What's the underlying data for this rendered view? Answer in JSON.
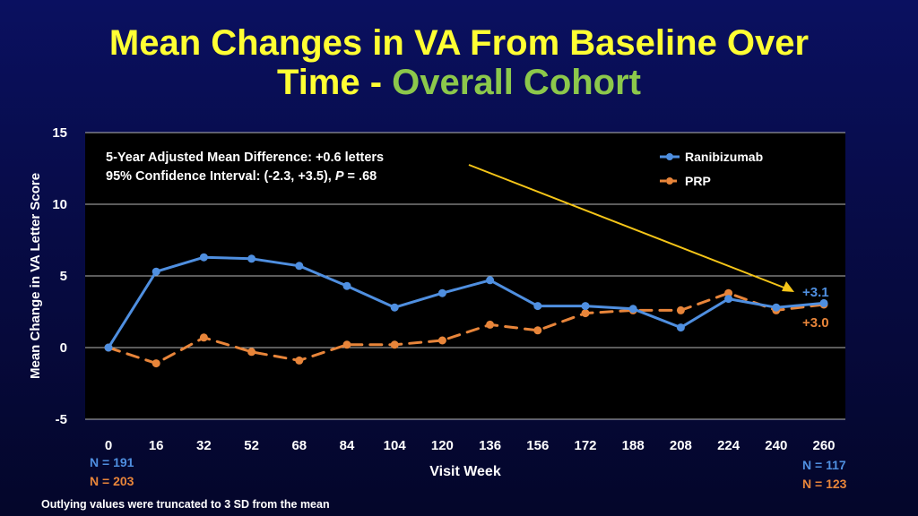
{
  "title": {
    "line1": "Mean Changes in VA From Baseline Over",
    "line2_main": "Time - ",
    "line2_accent": "Overall Cohort"
  },
  "annotation": {
    "line1": "5-Year Adjusted Mean Difference: +0.6 letters",
    "line2_prefix": "95% Confidence Interval: (-2.3, +3.5), ",
    "line2_p": "P",
    "line2_suffix": " = .68"
  },
  "end_labels": {
    "ranibizumab": "+3.1",
    "prp": "+3.0"
  },
  "n_counts": {
    "start_ranibizumab": "N = 191",
    "start_prp": "N = 203",
    "end_ranibizumab": "N = 117",
    "end_prp": "N = 123"
  },
  "footnote": "Outlying values were truncated to 3 SD from the mean",
  "colors": {
    "ranibizumab": "#4f8fe0",
    "prp": "#e8853a",
    "title": "#ffff33",
    "accent": "#8cc84b",
    "arrow": "#f5c518"
  },
  "chart_data": {
    "type": "line",
    "title": "Mean Changes in VA From Baseline Over Time - Overall Cohort",
    "xlabel": "Visit Week",
    "ylabel": "Mean Change in VA Letter Score",
    "categories": [
      "0",
      "16",
      "32",
      "52",
      "68",
      "84",
      "104",
      "120",
      "136",
      "156",
      "172",
      "188",
      "208",
      "224",
      "240",
      "260"
    ],
    "ylim": [
      -5,
      15
    ],
    "yticks": [
      "-5",
      "0",
      "5",
      "10",
      "15"
    ],
    "grid": true,
    "legend_position": "top-right",
    "series": [
      {
        "name": "Ranibizumab",
        "style": "solid",
        "values": [
          0,
          5.3,
          6.3,
          6.2,
          5.7,
          4.3,
          2.8,
          3.8,
          4.7,
          2.9,
          2.9,
          2.7,
          1.4,
          3.4,
          2.8,
          3.1
        ]
      },
      {
        "name": "PRP",
        "style": "dashed",
        "values": [
          0,
          -1.1,
          0.7,
          -0.3,
          -0.9,
          0.2,
          0.2,
          0.5,
          1.6,
          1.2,
          2.4,
          2.6,
          2.6,
          3.8,
          2.6,
          3.0
        ]
      }
    ]
  }
}
